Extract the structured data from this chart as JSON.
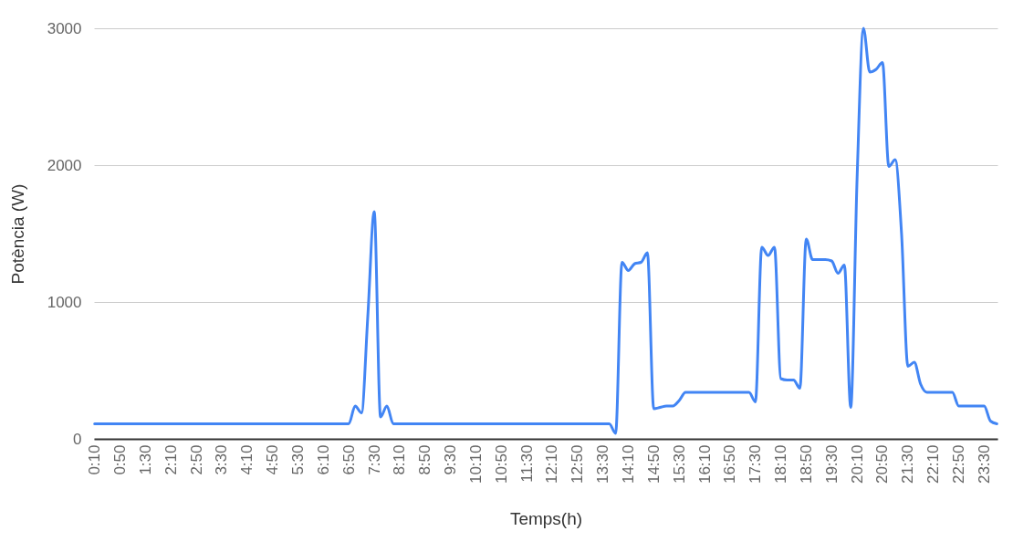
{
  "chart_data": {
    "type": "line",
    "xlabel": "Temps(h)",
    "ylabel": "Potència (W)",
    "categories": [
      "0:10",
      null,
      null,
      null,
      "0:50",
      null,
      null,
      null,
      "1:30",
      null,
      null,
      null,
      "2:10",
      null,
      null,
      null,
      "2:50",
      null,
      null,
      null,
      "3:30",
      null,
      null,
      null,
      "4:10",
      null,
      null,
      null,
      "4:50",
      null,
      null,
      null,
      "5:30",
      null,
      null,
      null,
      "6:10",
      null,
      null,
      null,
      "6:50",
      null,
      null,
      null,
      "7:30",
      null,
      null,
      null,
      "8:10",
      null,
      null,
      null,
      "8:50",
      null,
      null,
      null,
      "9:30",
      null,
      null,
      null,
      "10:10",
      null,
      null,
      null,
      "10:50",
      null,
      null,
      null,
      "11:30",
      null,
      null,
      null,
      "12:10",
      null,
      null,
      null,
      "12:50",
      null,
      null,
      null,
      "13:30",
      null,
      null,
      null,
      "14:10",
      null,
      null,
      null,
      "14:50",
      null,
      null,
      null,
      "15:30",
      null,
      null,
      null,
      "16:10",
      null,
      null,
      null,
      "16:50",
      null,
      null,
      null,
      "17:30",
      null,
      null,
      null,
      "18:10",
      null,
      null,
      null,
      "18:50",
      null,
      null,
      null,
      "19:30",
      null,
      null,
      null,
      "20:10",
      null,
      null,
      null,
      "20:50",
      null,
      null,
      null,
      "21:30",
      null,
      null,
      null,
      "22:10",
      null,
      null,
      null,
      "22:50",
      null,
      null,
      null,
      "23:30",
      null,
      null
    ],
    "series": [
      {
        "color": "#4285f4",
        "values": [
          110,
          110,
          110,
          110,
          110,
          110,
          110,
          110,
          110,
          110,
          110,
          110,
          110,
          110,
          110,
          110,
          110,
          110,
          110,
          110,
          110,
          110,
          110,
          110,
          110,
          110,
          110,
          110,
          110,
          110,
          110,
          110,
          110,
          110,
          110,
          110,
          110,
          110,
          110,
          110,
          110,
          240,
          190,
          900,
          1660,
          160,
          240,
          110,
          110,
          110,
          110,
          110,
          110,
          110,
          110,
          110,
          110,
          110,
          110,
          110,
          110,
          110,
          110,
          110,
          110,
          110,
          110,
          110,
          110,
          110,
          110,
          110,
          110,
          110,
          110,
          110,
          110,
          110,
          110,
          110,
          110,
          110,
          40,
          1290,
          1230,
          1280,
          1290,
          1360,
          220,
          230,
          240,
          240,
          280,
          340,
          340,
          340,
          340,
          340,
          340,
          340,
          340,
          340,
          340,
          340,
          270,
          1400,
          1340,
          1400,
          440,
          430,
          430,
          370,
          1460,
          1310,
          1310,
          1310,
          1300,
          1210,
          1270,
          230,
          1900,
          3000,
          2680,
          2700,
          2750,
          1990,
          2040,
          1500,
          530,
          560,
          400,
          340,
          340,
          340,
          340,
          340,
          240,
          240,
          240,
          240,
          240,
          130,
          110
        ]
      }
    ],
    "ylim": [
      0,
      3000
    ],
    "yticks": [
      0,
      1000,
      2000,
      3000
    ],
    "grid": "y"
  }
}
